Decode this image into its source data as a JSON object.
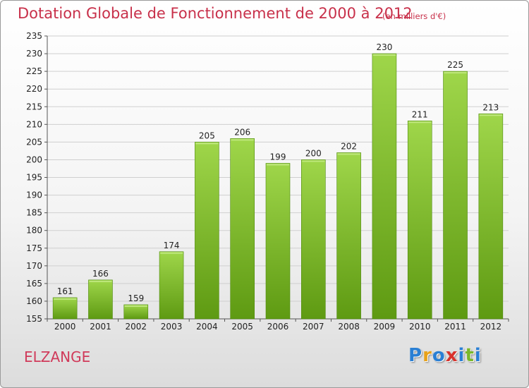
{
  "header": {
    "title": "Dotation Globale de Fonctionnement de 2000 à 2012",
    "unit": "(en milliers d'€)"
  },
  "footer": {
    "commune": "ELZANGE",
    "logo": {
      "letters": [
        "P",
        "r",
        "o",
        "x",
        "i",
        "t",
        "i"
      ],
      "colors": [
        "#2a7fd4",
        "#e8a21a",
        "#2a7fd4",
        "#d8322c",
        "#2a7fd4",
        "#7ab829",
        "#2a7fd4"
      ]
    }
  },
  "chart_data": {
    "type": "bar",
    "categories": [
      "2000",
      "2001",
      "2002",
      "2003",
      "2004",
      "2005",
      "2006",
      "2007",
      "2008",
      "2009",
      "2010",
      "2011",
      "2012"
    ],
    "values": [
      161,
      166,
      159,
      174,
      205,
      206,
      199,
      200,
      202,
      230,
      211,
      225,
      213
    ],
    "value_labels": [
      "161",
      "166",
      "159",
      "174",
      "205",
      "206",
      "199",
      "200",
      "202",
      "230",
      "211",
      "225",
      "213"
    ],
    "title": "Dotation Globale de Fonctionnement de 2000 à 2012",
    "subtitle": "(en milliers d'€)",
    "xlabel": "",
    "ylabel": "",
    "ylim": [
      155,
      235
    ],
    "yticks": [
      155,
      160,
      165,
      170,
      175,
      180,
      185,
      190,
      195,
      200,
      205,
      210,
      215,
      220,
      225,
      230,
      235
    ],
    "ytick_labels": [
      "155",
      "160",
      "165",
      "170",
      "175",
      "180",
      "185",
      "190",
      "195",
      "200",
      "205",
      "210",
      "215",
      "220",
      "225",
      "230",
      "235"
    ],
    "grid": true,
    "colors": {
      "bar_top": "#9fd64a",
      "bar_bottom": "#5e9a12",
      "grid": "#cfcfcf",
      "title": "#c8304a"
    }
  }
}
